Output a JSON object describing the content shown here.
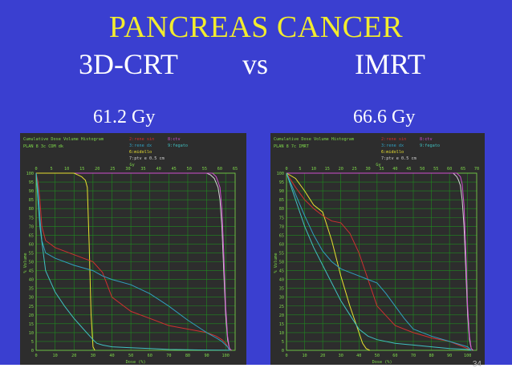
{
  "slide": {
    "title": "PANCREAS CANCER",
    "left_heading": "3D-CRT",
    "vs": "vs",
    "right_heading": "IMRT",
    "left_dose": "61.2 Gy",
    "right_dose": "66.6 Gy",
    "page_number": "34"
  },
  "colors": {
    "background": "#3a3fd0",
    "title": "#f2ec2e",
    "grid": "#1f8a1f",
    "axis_text": "#7fd94a",
    "ptv": "#d4d4d4",
    "ctv": "#d050d0",
    "rene_sin": "#d03030",
    "rene_dx": "#30a0c0",
    "fegato": "#40c0c0",
    "midollo": "#e8e030"
  },
  "chart_data": [
    {
      "type": "line",
      "header": "Cumulative Dose Volume Histogram",
      "plan": "PLAN  8   3c CDM dk",
      "legend": [
        "2:rene sin",
        "8:ctv",
        "3:rene dx",
        "9:fegato",
        "6:midollo",
        "7:ptv e 0.5 cm"
      ],
      "xlabel": "Dose (%)",
      "ylabel": "% Volume",
      "xticks_bottom": [
        "0",
        "10",
        "20",
        "30",
        "40",
        "50",
        "60",
        "70",
        "80",
        "90",
        "100"
      ],
      "xticks_top": [
        "0",
        "5",
        "10",
        "15",
        "20",
        "25",
        "30",
        "35",
        "40",
        "45",
        "50",
        "55",
        "60",
        "65"
      ],
      "top_axis_label": "Gy",
      "yticks": [
        "100",
        "95",
        "90",
        "85",
        "80",
        "75",
        "70",
        "65",
        "60",
        "55",
        "50",
        "45",
        "40",
        "35",
        "30",
        "25",
        "20",
        "15",
        "10",
        "5",
        "0"
      ],
      "xlim": [
        0,
        105
      ],
      "ylim": [
        0,
        100
      ],
      "series": [
        {
          "name": "ptv",
          "color_key": "ptv",
          "x": [
            0,
            90,
            92,
            94,
            96,
            97,
            98,
            99,
            100,
            101,
            102,
            103
          ],
          "y": [
            100,
            100,
            99,
            97,
            92,
            85,
            70,
            45,
            20,
            6,
            1,
            0
          ]
        },
        {
          "name": "ctv",
          "color_key": "ctv",
          "x": [
            0,
            93,
            95,
            97,
            98,
            99,
            100,
            101,
            102,
            103
          ],
          "y": [
            100,
            100,
            98,
            92,
            80,
            55,
            25,
            8,
            1,
            0
          ]
        },
        {
          "name": "midollo",
          "color_key": "midollo",
          "x": [
            0,
            20,
            22,
            24,
            25,
            26,
            27,
            28,
            29,
            30,
            31
          ],
          "y": [
            100,
            100,
            99,
            98,
            97,
            96,
            92,
            60,
            20,
            2,
            0
          ]
        },
        {
          "name": "rene sin",
          "color_key": "rene_sin",
          "x": [
            0,
            1,
            2,
            3,
            5,
            10,
            20,
            30,
            35,
            40,
            50,
            60,
            70,
            80,
            90,
            95,
            98,
            100,
            101,
            102
          ],
          "y": [
            100,
            95,
            85,
            70,
            62,
            58,
            54,
            50,
            44,
            30,
            22,
            18,
            14,
            12,
            10,
            8,
            6,
            4,
            2,
            0
          ]
        },
        {
          "name": "rene dx",
          "color_key": "rene_dx",
          "x": [
            0,
            1,
            2,
            3,
            5,
            10,
            20,
            30,
            35,
            40,
            50,
            60,
            70,
            80,
            90,
            95,
            98,
            100,
            101,
            102
          ],
          "y": [
            100,
            90,
            75,
            62,
            55,
            52,
            48,
            45,
            42,
            40,
            37,
            32,
            25,
            17,
            10,
            7,
            5,
            3,
            2,
            0
          ]
        },
        {
          "name": "fegato",
          "color_key": "fegato",
          "x": [
            0,
            2,
            5,
            10,
            15,
            20,
            25,
            30,
            32,
            35,
            40,
            50,
            60,
            70,
            80,
            90,
            100,
            102
          ],
          "y": [
            100,
            70,
            45,
            33,
            25,
            18,
            12,
            6,
            4,
            3,
            2,
            1.5,
            1,
            0.5,
            0.3,
            0.2,
            0.1,
            0
          ]
        }
      ]
    },
    {
      "type": "line",
      "header": "Cumulative Dose Volume Histogram",
      "plan": "PLAN  8   7c IMRT",
      "legend": [
        "2:rene sin",
        "8:ctv",
        "3:rene dx",
        "9:fegato",
        "6:midollo",
        "7:ptv e 0.5 cm"
      ],
      "xlabel": "Dose (%)",
      "ylabel": "% Volume",
      "xticks_bottom": [
        "0",
        "10",
        "20",
        "30",
        "40",
        "50",
        "60",
        "70",
        "80",
        "90",
        "100"
      ],
      "xticks_top": [
        "0",
        "5",
        "10",
        "15",
        "20",
        "25",
        "30",
        "35",
        "40",
        "45",
        "50",
        "55",
        "60",
        "65",
        "70"
      ],
      "top_axis_label": "Gy",
      "yticks": [
        "100",
        "95",
        "90",
        "85",
        "80",
        "75",
        "70",
        "65",
        "60",
        "55",
        "50",
        "45",
        "40",
        "35",
        "30",
        "25",
        "20",
        "15",
        "10",
        "5",
        "0"
      ],
      "xlim": [
        0,
        105
      ],
      "ylim": [
        0,
        100
      ],
      "series": [
        {
          "name": "ptv",
          "color_key": "ptv",
          "x": [
            0,
            92,
            94,
            95,
            96,
            97,
            98,
            99,
            100,
            101,
            102,
            103
          ],
          "y": [
            100,
            100,
            98,
            96,
            93,
            85,
            70,
            45,
            20,
            6,
            1,
            0
          ]
        },
        {
          "name": "ctv",
          "color_key": "ctv",
          "x": [
            0,
            94,
            96,
            97,
            98,
            99,
            100,
            101,
            102,
            103
          ],
          "y": [
            100,
            100,
            98,
            94,
            82,
            55,
            25,
            8,
            1,
            0
          ]
        },
        {
          "name": "midollo",
          "color_key": "midollo",
          "x": [
            0,
            5,
            10,
            15,
            20,
            25,
            30,
            35,
            40,
            42,
            44,
            46
          ],
          "y": [
            100,
            97,
            90,
            82,
            78,
            62,
            42,
            25,
            10,
            4,
            1,
            0
          ]
        },
        {
          "name": "rene sin",
          "color_key": "rene_sin",
          "x": [
            0,
            5,
            10,
            15,
            20,
            25,
            30,
            35,
            40,
            45,
            50,
            60,
            70,
            80,
            90,
            95,
            100,
            102
          ],
          "y": [
            100,
            92,
            85,
            80,
            76,
            73,
            72,
            66,
            55,
            40,
            25,
            14,
            10,
            7,
            5,
            3,
            1,
            0
          ]
        },
        {
          "name": "rene dx",
          "color_key": "rene_dx",
          "x": [
            0,
            5,
            10,
            15,
            20,
            25,
            30,
            35,
            40,
            45,
            50,
            55,
            60,
            65,
            70,
            80,
            90,
            100,
            102
          ],
          "y": [
            100,
            88,
            76,
            65,
            56,
            50,
            46,
            44,
            42,
            40,
            38,
            32,
            25,
            18,
            12,
            8,
            5,
            2,
            0
          ]
        },
        {
          "name": "fegato",
          "color_key": "fegato",
          "x": [
            0,
            5,
            10,
            15,
            20,
            25,
            30,
            35,
            40,
            45,
            50,
            60,
            70,
            80,
            90,
            100,
            102
          ],
          "y": [
            100,
            85,
            70,
            58,
            48,
            38,
            28,
            20,
            12,
            8,
            6,
            4,
            3,
            2,
            1,
            0.5,
            0
          ]
        }
      ]
    }
  ]
}
